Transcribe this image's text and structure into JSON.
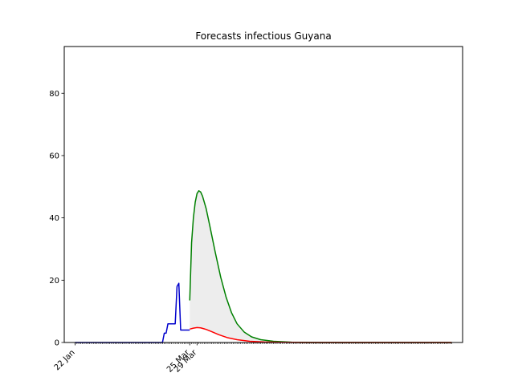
{
  "chart_data": {
    "type": "line",
    "title": "Forecasts infectious Guyana",
    "xlabel": "",
    "ylabel": "",
    "ylim": [
      0,
      95
    ],
    "yticks": [
      0,
      20,
      40,
      60,
      80
    ],
    "xlim": [
      "2020-01-16",
      "2020-08-22"
    ],
    "xticks": [
      {
        "label": "22 Jan",
        "date": "2020-01-22"
      },
      {
        "label": "25 Mar",
        "date": "2020-03-25"
      },
      {
        "label": "29 Mar",
        "date": "2020-03-29"
      }
    ],
    "minor_ticks": {
      "from": "2020-01-22",
      "to": "2020-08-16",
      "step_days": 1
    },
    "grid": false,
    "legend": "none",
    "series": [
      {
        "role": "observed",
        "color": "#0000cc",
        "points": [
          [
            "2020-01-22",
            0
          ],
          [
            "2020-03-10",
            0
          ],
          [
            "2020-03-11",
            3
          ],
          [
            "2020-03-12",
            3
          ],
          [
            "2020-03-13",
            6
          ],
          [
            "2020-03-16",
            6
          ],
          [
            "2020-03-17",
            6
          ],
          [
            "2020-03-18",
            18
          ],
          [
            "2020-03-19",
            19
          ],
          [
            "2020-03-20",
            4
          ],
          [
            "2020-03-22",
            4
          ],
          [
            "2020-03-25",
            4
          ]
        ]
      },
      {
        "role": "upper forecast",
        "color": "#008000",
        "points": [
          [
            "2020-03-25",
            13.5
          ],
          [
            "2020-03-26",
            32
          ],
          [
            "2020-03-27",
            40
          ],
          [
            "2020-03-28",
            45
          ],
          [
            "2020-03-29",
            47.8
          ],
          [
            "2020-03-30",
            48.7
          ],
          [
            "2020-03-31",
            48.3
          ],
          [
            "2020-04-01",
            47
          ],
          [
            "2020-04-03",
            43
          ],
          [
            "2020-04-05",
            37.5
          ],
          [
            "2020-04-08",
            29
          ],
          [
            "2020-04-11",
            21
          ],
          [
            "2020-04-14",
            14.5
          ],
          [
            "2020-04-17",
            9.5
          ],
          [
            "2020-04-20",
            6
          ],
          [
            "2020-04-24",
            3.3
          ],
          [
            "2020-04-28",
            1.8
          ],
          [
            "2020-05-03",
            0.9
          ],
          [
            "2020-05-10",
            0.4
          ],
          [
            "2020-05-20",
            0.1
          ],
          [
            "2020-06-01",
            0
          ],
          [
            "2020-08-16",
            0
          ]
        ]
      },
      {
        "role": "lower forecast",
        "color": "#ff0000",
        "points": [
          [
            "2020-03-25",
            4.3
          ],
          [
            "2020-03-27",
            4.6
          ],
          [
            "2020-03-29",
            4.8
          ],
          [
            "2020-03-31",
            4.7
          ],
          [
            "2020-04-03",
            4.2
          ],
          [
            "2020-04-06",
            3.5
          ],
          [
            "2020-04-10",
            2.5
          ],
          [
            "2020-04-15",
            1.5
          ],
          [
            "2020-04-20",
            0.9
          ],
          [
            "2020-04-27",
            0.4
          ],
          [
            "2020-05-05",
            0.15
          ],
          [
            "2020-05-15",
            0.05
          ],
          [
            "2020-06-01",
            0
          ],
          [
            "2020-08-16",
            0
          ]
        ]
      }
    ],
    "band": {
      "between": [
        "lower forecast",
        "upper forecast"
      ],
      "color": "#d3d3d3",
      "opacity": 0.4
    }
  }
}
